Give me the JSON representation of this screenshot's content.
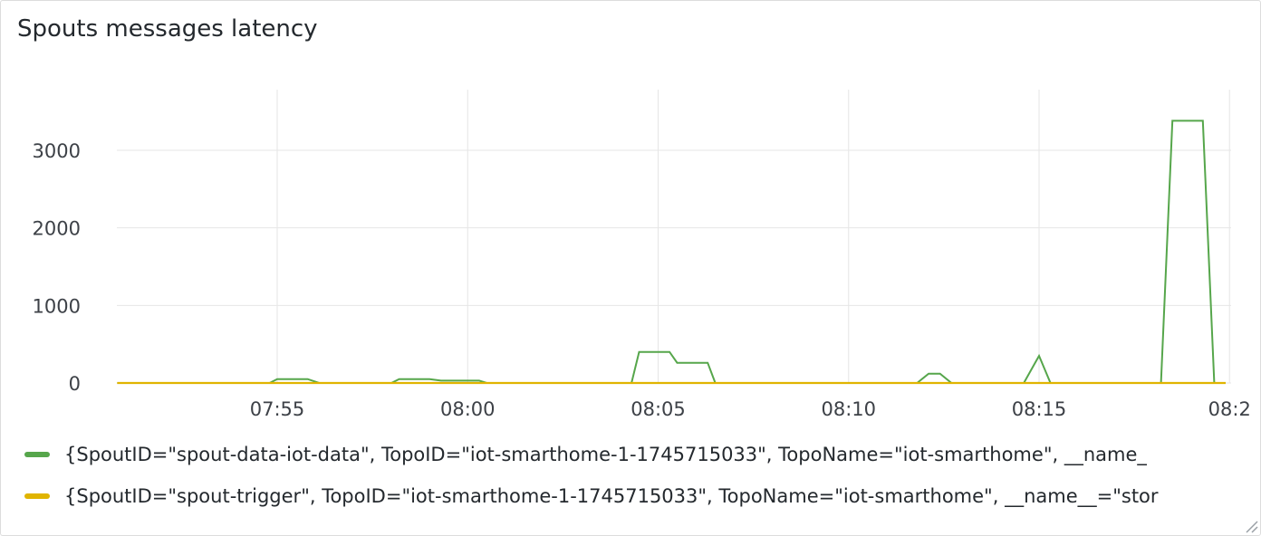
{
  "panel": {
    "title": "Spouts messages latency"
  },
  "colors": {
    "grid": "#e6e6e6",
    "axis_text": "#3d4147",
    "series_green": "#56a64b",
    "series_yellow": "#e0b400"
  },
  "chart_data": {
    "type": "line",
    "title": "Spouts messages latency",
    "xlabel": "",
    "ylabel": "",
    "x_ticks": [
      "07:55",
      "08:00",
      "08:05",
      "08:10",
      "08:15",
      "08:2"
    ],
    "y_ticks": [
      0,
      1000,
      2000,
      3000
    ],
    "xlim": [
      "07:50.8",
      "08:19.9"
    ],
    "ylim": [
      0,
      3800
    ],
    "grid": true,
    "legend_placement": "bottom",
    "series": [
      {
        "name": "{SpoutID=\"spout-data-iot-data\", TopoID=\"iot-smarthome-1-1745715033\", TopoName=\"iot-smarthome\", __name_",
        "color": "#56a64b",
        "points": [
          [
            "07:50.8",
            0
          ],
          [
            "07:54.8",
            0
          ],
          [
            "07:55.0",
            50
          ],
          [
            "07:55.8",
            50
          ],
          [
            "07:56.1",
            0
          ],
          [
            "07:58.0",
            0
          ],
          [
            "07:58.2",
            50
          ],
          [
            "07:59.0",
            50
          ],
          [
            "07:59.3",
            30
          ],
          [
            "08:00.3",
            30
          ],
          [
            "08:00.5",
            0
          ],
          [
            "08:04.3",
            0
          ],
          [
            "08:04.5",
            400
          ],
          [
            "08:05.3",
            400
          ],
          [
            "08:05.5",
            260
          ],
          [
            "08:06.3",
            260
          ],
          [
            "08:06.5",
            0
          ],
          [
            "08:11.8",
            0
          ],
          [
            "08:12.1",
            120
          ],
          [
            "08:12.4",
            120
          ],
          [
            "08:12.7",
            0
          ],
          [
            "08:14.6",
            0
          ],
          [
            "08:15.0",
            350
          ],
          [
            "08:15.3",
            0
          ],
          [
            "08:18.2",
            0
          ],
          [
            "08:18.5",
            3380
          ],
          [
            "08:19.3",
            3380
          ],
          [
            "08:19.6",
            0
          ],
          [
            "08:19.9",
            0
          ]
        ]
      },
      {
        "name": "{SpoutID=\"spout-trigger\", TopoID=\"iot-smarthome-1-1745715033\", TopoName=\"iot-smarthome\", __name__=\"stor",
        "color": "#e0b400",
        "points": [
          [
            "07:50.8",
            0
          ],
          [
            "08:19.9",
            0
          ]
        ]
      }
    ]
  },
  "legend": {
    "items": [
      {
        "label": "{SpoutID=\"spout-data-iot-data\", TopoID=\"iot-smarthome-1-1745715033\", TopoName=\"iot-smarthome\", __name_",
        "color": "#56a64b"
      },
      {
        "label": "{SpoutID=\"spout-trigger\", TopoID=\"iot-smarthome-1-1745715033\", TopoName=\"iot-smarthome\", __name__=\"stor",
        "color": "#e0b400"
      }
    ]
  }
}
